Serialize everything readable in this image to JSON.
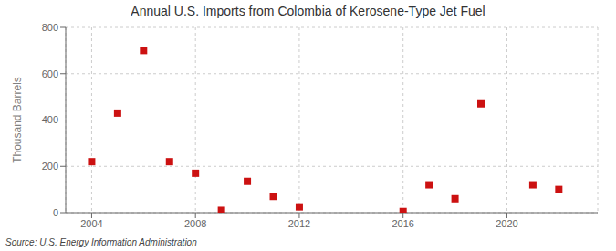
{
  "chart_data": {
    "type": "scatter",
    "title": "Annual U.S. Imports from Colombia of Kerosene-Type Jet Fuel",
    "y_label": "Thousand Barrels",
    "annotations": [
      "Source: U.S. Energy Information Administration"
    ],
    "x": [
      2004,
      2005,
      2006,
      2007,
      2008,
      2009,
      2010,
      2011,
      2012,
      2016,
      2017,
      2018,
      2019,
      2021,
      2022
    ],
    "values": [
      220,
      430,
      700,
      220,
      170,
      10,
      135,
      70,
      25,
      5,
      120,
      60,
      470,
      120,
      100
    ],
    "color": "#cc1111",
    "marker": "square",
    "xlim": [
      2003.0,
      2023.5
    ],
    "ylim": [
      0,
      800
    ],
    "xticks": [
      2004,
      2008,
      2012,
      2016,
      2020
    ],
    "yticks": [
      0,
      200,
      400,
      600,
      800
    ],
    "grid": true
  }
}
